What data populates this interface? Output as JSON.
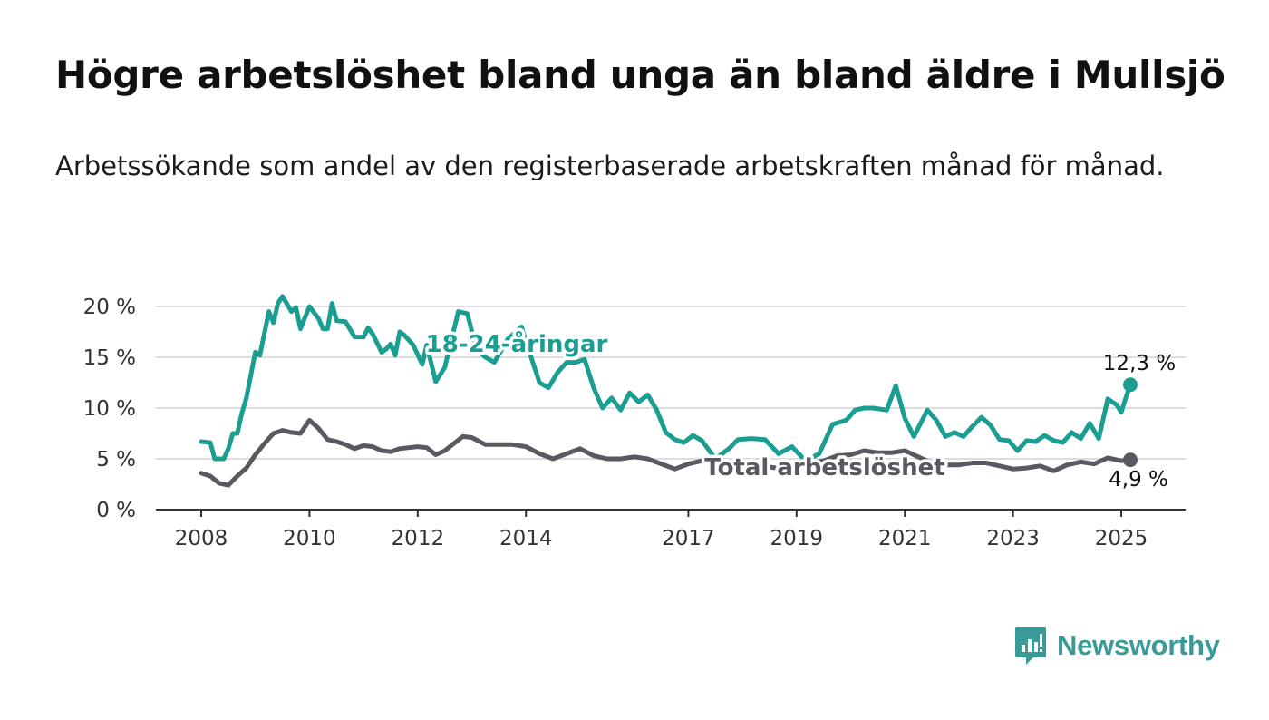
{
  "title": "Högre arbetslöshet bland unga än bland äldre i Mullsjö",
  "subtitle": "Arbetssökande som andel av den registerbaserade arbetskraften månad för månad.",
  "brand": {
    "name": "Newsworthy",
    "icon": "newsworthy-logo-icon",
    "color": "#3a9a97"
  },
  "chart_data": {
    "type": "line",
    "title": "Högre arbetslöshet bland unga än bland äldre i Mullsjö",
    "subtitle": "Arbetssökande som andel av den registerbaserade arbetskraften månad för månad.",
    "x_range": [
      "2008-01",
      "2025-03"
    ],
    "ylim": [
      0,
      20
    ],
    "y_ticks": [
      0,
      5,
      10,
      15,
      20
    ],
    "y_tick_labels": [
      "0 %",
      "5 %",
      "10 %",
      "15 %",
      "20 %"
    ],
    "x_ticks": [
      "2008",
      "2010",
      "2012",
      "2014",
      "2017",
      "2019",
      "2021",
      "2023",
      "2025"
    ],
    "grid": "horizontal",
    "legend": "inline labels",
    "series": [
      {
        "name": "18-24-åringar",
        "color": "#1a9e91",
        "end_label": "12,3 %",
        "points": [
          [
            "2008-01",
            6.7
          ],
          [
            "2008-03",
            6.6
          ],
          [
            "2008-04",
            5.0
          ],
          [
            "2008-06",
            5.0
          ],
          [
            "2008-07",
            6.0
          ],
          [
            "2008-08",
            7.5
          ],
          [
            "2008-09",
            7.5
          ],
          [
            "2008-10",
            9.5
          ],
          [
            "2008-11",
            11.0
          ],
          [
            "2009-01",
            15.5
          ],
          [
            "2009-02",
            15.2
          ],
          [
            "2009-04",
            19.5
          ],
          [
            "2009-05",
            18.4
          ],
          [
            "2009-06",
            20.3
          ],
          [
            "2009-07",
            21.0
          ],
          [
            "2009-09",
            19.5
          ],
          [
            "2009-10",
            19.9
          ],
          [
            "2009-11",
            17.8
          ],
          [
            "2010-01",
            20.0
          ],
          [
            "2010-03",
            18.8
          ],
          [
            "2010-04",
            17.8
          ],
          [
            "2010-05",
            17.8
          ],
          [
            "2010-06",
            20.3
          ],
          [
            "2010-07",
            18.6
          ],
          [
            "2010-09",
            18.5
          ],
          [
            "2010-11",
            17.0
          ],
          [
            "2011-01",
            17.0
          ],
          [
            "2011-02",
            17.9
          ],
          [
            "2011-03",
            17.3
          ],
          [
            "2011-05",
            15.5
          ],
          [
            "2011-06",
            15.8
          ],
          [
            "2011-07",
            16.3
          ],
          [
            "2011-08",
            15.2
          ],
          [
            "2011-09",
            17.5
          ],
          [
            "2011-10",
            17.2
          ],
          [
            "2011-12",
            16.2
          ],
          [
            "2012-02",
            14.3
          ],
          [
            "2012-03",
            16.2
          ],
          [
            "2012-05",
            12.6
          ],
          [
            "2012-07",
            14.0
          ],
          [
            "2012-10",
            19.5
          ],
          [
            "2012-12",
            19.3
          ],
          [
            "2013-02",
            15.8
          ],
          [
            "2013-04",
            15.0
          ],
          [
            "2013-06",
            14.5
          ],
          [
            "2013-09",
            16.8
          ],
          [
            "2013-12",
            18.0
          ],
          [
            "2014-02",
            15.2
          ],
          [
            "2014-04",
            12.5
          ],
          [
            "2014-06",
            12.0
          ],
          [
            "2014-08",
            13.5
          ],
          [
            "2014-10",
            14.5
          ],
          [
            "2014-12",
            14.5
          ],
          [
            "2015-02",
            14.8
          ],
          [
            "2015-04",
            12.0
          ],
          [
            "2015-06",
            10.0
          ],
          [
            "2015-08",
            11.0
          ],
          [
            "2015-10",
            9.8
          ],
          [
            "2015-12",
            11.5
          ],
          [
            "2016-02",
            10.6
          ],
          [
            "2016-04",
            11.3
          ],
          [
            "2016-06",
            9.8
          ],
          [
            "2016-08",
            7.6
          ],
          [
            "2016-10",
            6.9
          ],
          [
            "2016-12",
            6.6
          ],
          [
            "2017-02",
            7.3
          ],
          [
            "2017-04",
            6.8
          ],
          [
            "2017-07",
            5.0
          ],
          [
            "2017-10",
            6.0
          ],
          [
            "2017-12",
            6.9
          ],
          [
            "2018-03",
            7.0
          ],
          [
            "2018-06",
            6.9
          ],
          [
            "2018-09",
            5.5
          ],
          [
            "2018-12",
            6.2
          ],
          [
            "2019-03",
            4.8
          ],
          [
            "2019-06",
            5.5
          ],
          [
            "2019-09",
            8.4
          ],
          [
            "2019-12",
            8.8
          ],
          [
            "2020-02",
            9.8
          ],
          [
            "2020-04",
            10.0
          ],
          [
            "2020-06",
            10.0
          ],
          [
            "2020-09",
            9.8
          ],
          [
            "2020-11",
            12.2
          ],
          [
            "2021-01",
            9.0
          ],
          [
            "2021-03",
            7.2
          ],
          [
            "2021-06",
            9.8
          ],
          [
            "2021-08",
            8.8
          ],
          [
            "2021-10",
            7.2
          ],
          [
            "2021-12",
            7.6
          ],
          [
            "2022-02",
            7.2
          ],
          [
            "2022-04",
            8.2
          ],
          [
            "2022-06",
            9.1
          ],
          [
            "2022-08",
            8.3
          ],
          [
            "2022-10",
            6.9
          ],
          [
            "2022-12",
            6.8
          ],
          [
            "2023-02",
            5.8
          ],
          [
            "2023-04",
            6.8
          ],
          [
            "2023-06",
            6.7
          ],
          [
            "2023-08",
            7.3
          ],
          [
            "2023-10",
            6.8
          ],
          [
            "2023-12",
            6.6
          ],
          [
            "2024-02",
            7.6
          ],
          [
            "2024-04",
            7.0
          ],
          [
            "2024-06",
            8.5
          ],
          [
            "2024-08",
            7.0
          ],
          [
            "2024-10",
            10.9
          ],
          [
            "2024-12",
            10.3
          ],
          [
            "2025-01",
            9.6
          ],
          [
            "2025-02",
            11.0
          ],
          [
            "2025-03",
            12.3
          ]
        ]
      },
      {
        "name": "Total arbetslöshet",
        "color": "#5a5860",
        "end_label": "4,9 %",
        "points": [
          [
            "2008-01",
            3.6
          ],
          [
            "2008-03",
            3.3
          ],
          [
            "2008-05",
            2.6
          ],
          [
            "2008-07",
            2.4
          ],
          [
            "2008-09",
            3.3
          ],
          [
            "2008-11",
            4.1
          ],
          [
            "2009-01",
            5.4
          ],
          [
            "2009-03",
            6.5
          ],
          [
            "2009-05",
            7.5
          ],
          [
            "2009-07",
            7.8
          ],
          [
            "2009-09",
            7.6
          ],
          [
            "2009-11",
            7.5
          ],
          [
            "2010-01",
            8.8
          ],
          [
            "2010-03",
            8.0
          ],
          [
            "2010-05",
            6.9
          ],
          [
            "2010-07",
            6.7
          ],
          [
            "2010-09",
            6.4
          ],
          [
            "2010-11",
            6.0
          ],
          [
            "2011-01",
            6.3
          ],
          [
            "2011-03",
            6.2
          ],
          [
            "2011-05",
            5.8
          ],
          [
            "2011-07",
            5.7
          ],
          [
            "2011-09",
            6.0
          ],
          [
            "2011-11",
            6.1
          ],
          [
            "2012-01",
            6.2
          ],
          [
            "2012-03",
            6.1
          ],
          [
            "2012-05",
            5.4
          ],
          [
            "2012-07",
            5.8
          ],
          [
            "2012-09",
            6.5
          ],
          [
            "2012-11",
            7.2
          ],
          [
            "2013-01",
            7.1
          ],
          [
            "2013-04",
            6.4
          ],
          [
            "2013-07",
            6.4
          ],
          [
            "2013-10",
            6.4
          ],
          [
            "2014-01",
            6.2
          ],
          [
            "2014-04",
            5.5
          ],
          [
            "2014-07",
            5.0
          ],
          [
            "2014-10",
            5.5
          ],
          [
            "2015-01",
            6.0
          ],
          [
            "2015-04",
            5.3
          ],
          [
            "2015-07",
            5.0
          ],
          [
            "2015-10",
            5.0
          ],
          [
            "2016-01",
            5.2
          ],
          [
            "2016-04",
            5.0
          ],
          [
            "2016-07",
            4.5
          ],
          [
            "2016-10",
            4.0
          ],
          [
            "2017-01",
            4.5
          ],
          [
            "2017-04",
            4.8
          ],
          [
            "2017-07",
            5.1
          ],
          [
            "2017-10",
            4.5
          ],
          [
            "2018-01",
            4.2
          ],
          [
            "2018-04",
            4.3
          ],
          [
            "2018-07",
            4.2
          ],
          [
            "2018-10",
            4.0
          ],
          [
            "2019-01",
            4.4
          ],
          [
            "2019-04",
            4.6
          ],
          [
            "2019-07",
            4.8
          ],
          [
            "2019-10",
            5.3
          ],
          [
            "2020-01",
            5.4
          ],
          [
            "2020-04",
            5.8
          ],
          [
            "2020-07",
            5.6
          ],
          [
            "2020-10",
            5.6
          ],
          [
            "2021-01",
            5.8
          ],
          [
            "2021-04",
            5.2
          ],
          [
            "2021-07",
            4.6
          ],
          [
            "2021-10",
            4.4
          ],
          [
            "2022-01",
            4.4
          ],
          [
            "2022-04",
            4.6
          ],
          [
            "2022-07",
            4.6
          ],
          [
            "2022-10",
            4.3
          ],
          [
            "2023-01",
            4.0
          ],
          [
            "2023-04",
            4.1
          ],
          [
            "2023-07",
            4.3
          ],
          [
            "2023-10",
            3.8
          ],
          [
            "2024-01",
            4.4
          ],
          [
            "2024-04",
            4.7
          ],
          [
            "2024-07",
            4.5
          ],
          [
            "2024-10",
            5.1
          ],
          [
            "2025-01",
            4.8
          ],
          [
            "2025-03",
            4.9
          ]
        ]
      }
    ]
  }
}
